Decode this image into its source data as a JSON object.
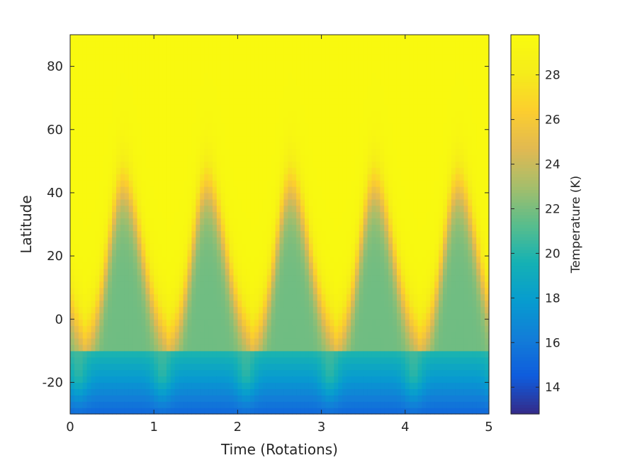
{
  "chart_data": {
    "type": "heatmap",
    "title": "",
    "xlabel": "Time (Rotations)",
    "ylabel": "Latitude",
    "xlim": [
      0,
      5
    ],
    "ylim": [
      -30,
      90
    ],
    "x_ticks": [
      0,
      1,
      2,
      3,
      4,
      5
    ],
    "y_ticks": [
      -20,
      0,
      20,
      40,
      60,
      80
    ],
    "colormap": "parula",
    "colorbar": {
      "label": "Temperature (K)",
      "range": [
        12.8,
        29.8
      ],
      "ticks": [
        14,
        16,
        18,
        20,
        22,
        24,
        26,
        28
      ],
      "placement": "right"
    },
    "grid": false,
    "model": {
      "period_rotations": 1,
      "peak_phase_rotations": 0.63,
      "cold_lobe_peak_latitude": 42,
      "southern_band_edge_latitude": -9,
      "max_temperature": 29.6,
      "cold_lobe_min_temperature": 21.8,
      "southern_band_min_temperature": 13.1
    }
  }
}
